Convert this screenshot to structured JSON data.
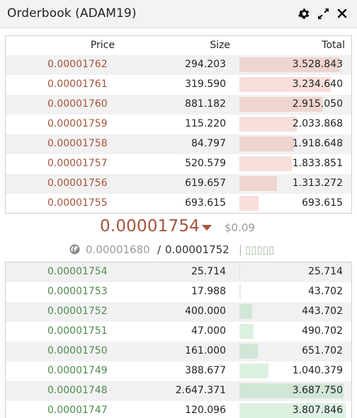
{
  "header": {
    "title": "Orderbook (ADAM19)",
    "icons": [
      "gear-icon",
      "expand-icon",
      "close-icon"
    ]
  },
  "columns": {
    "price": "Price",
    "size": "Size",
    "total": "Total"
  },
  "asks": [
    {
      "price": "0.00001762",
      "size": "294.203",
      "total": "3.528.843",
      "depth": 0.94
    },
    {
      "price": "0.00001761",
      "size": "319.590",
      "total": "3.234.640",
      "depth": 0.86
    },
    {
      "price": "0.00001760",
      "size": "881.182",
      "total": "2.915.050",
      "depth": 0.78
    },
    {
      "price": "0.00001759",
      "size": "115.220",
      "total": "2.033.868",
      "depth": 0.54
    },
    {
      "price": "0.00001758",
      "size": "84.797",
      "total": "1.918.648",
      "depth": 0.51
    },
    {
      "price": "0.00001757",
      "size": "520.579",
      "total": "1.833.851",
      "depth": 0.49
    },
    {
      "price": "0.00001756",
      "size": "619.657",
      "total": "1.313.272",
      "depth": 0.35
    },
    {
      "price": "0.00001755",
      "size": "693.615",
      "total": "693.615",
      "depth": 0.18
    }
  ],
  "last_trade": {
    "price": "0.00001754",
    "direction": "down",
    "usd": "$0.09"
  },
  "spread": {
    "low": "0.00001680",
    "slash": "/",
    "high": "0.00001752",
    "separator": "|",
    "boxes": "▯▯▯▯▯"
  },
  "bids": [
    {
      "price": "0.00001754",
      "size": "25.714",
      "total": "25.714",
      "depth": 0.007
    },
    {
      "price": "0.00001753",
      "size": "17.988",
      "total": "43.702",
      "depth": 0.012
    },
    {
      "price": "0.00001752",
      "size": "400.000",
      "total": "443.702",
      "depth": 0.118
    },
    {
      "price": "0.00001751",
      "size": "47.000",
      "total": "490.702",
      "depth": 0.13
    },
    {
      "price": "0.00001750",
      "size": "161.000",
      "total": "651.702",
      "depth": 0.173
    },
    {
      "price": "0.00001749",
      "size": "388.677",
      "total": "1.040.379",
      "depth": 0.276
    },
    {
      "price": "0.00001748",
      "size": "2.647.371",
      "total": "3.687.750",
      "depth": 0.979
    },
    {
      "price": "0.00001747",
      "size": "120.096",
      "total": "3.807.846",
      "depth": 1.0
    }
  ],
  "colors": {
    "ask": "#a6533a",
    "bid": "#4c8a4e"
  }
}
